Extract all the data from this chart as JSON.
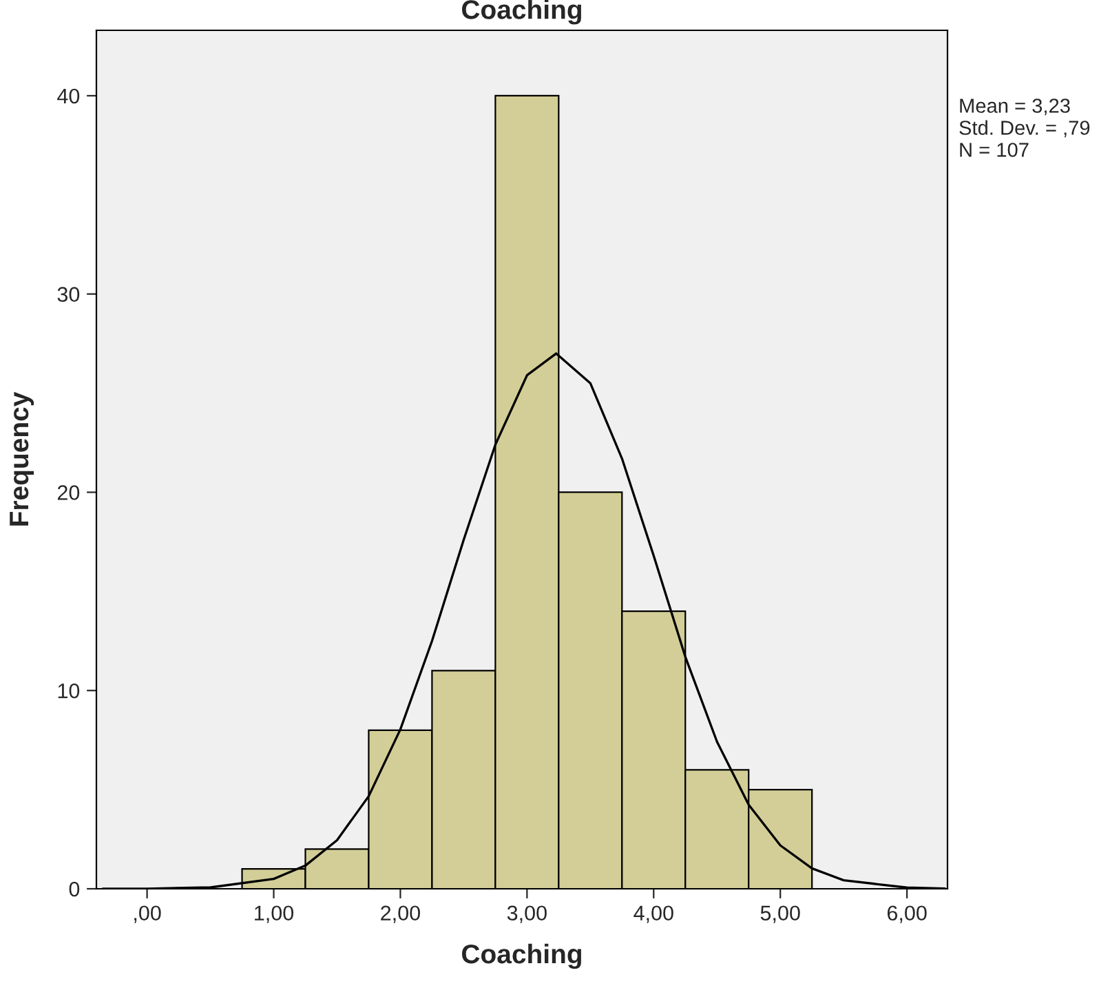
{
  "chart_data": {
    "type": "histogram",
    "title": "Coaching",
    "xlabel": "Coaching",
    "ylabel": "Frequency",
    "bins": [
      0.75,
      1.25,
      1.75,
      2.25,
      2.75,
      3.25,
      3.75,
      4.25,
      4.75,
      5.25
    ],
    "values": [
      1,
      2,
      8,
      11,
      40,
      20,
      14,
      6,
      5
    ],
    "color": "#d3ce97",
    "series": [
      {
        "type": "line",
        "color": "#000000",
        "x": [
          -0.35,
          0.0,
          0.5,
          1.0,
          1.25,
          1.5,
          1.75,
          2.0,
          2.25,
          2.5,
          2.75,
          3.0,
          3.23,
          3.5,
          3.75,
          4.0,
          4.25,
          4.5,
          4.75,
          5.0,
          5.25,
          5.5,
          6.0,
          6.3
        ],
        "values": [
          0.0,
          0.006,
          0.07,
          0.5,
          1.17,
          2.45,
          4.67,
          8.04,
          12.5,
          17.6,
          22.4,
          25.9,
          27.0,
          25.5,
          21.7,
          16.8,
          11.7,
          7.42,
          4.24,
          2.19,
          1.03,
          0.43,
          0.06,
          0.01
        ]
      }
    ],
    "xlim": [
      -0.4,
      6.32
    ],
    "ylim": [
      0,
      43.3
    ],
    "xticks": [
      {
        "value": 0,
        "label": ",00"
      },
      {
        "value": 1,
        "label": "1,00"
      },
      {
        "value": 2,
        "label": "2,00"
      },
      {
        "value": 3,
        "label": "3,00"
      },
      {
        "value": 4,
        "label": "4,00"
      },
      {
        "value": 5,
        "label": "5,00"
      },
      {
        "value": 6,
        "label": "6,00"
      }
    ],
    "yticks": [
      0,
      10,
      20,
      30,
      40
    ],
    "grid": false,
    "legend": false,
    "annotations": [
      "Mean = 3,23",
      "Std. Dev. = ,79",
      "N = 107"
    ]
  }
}
